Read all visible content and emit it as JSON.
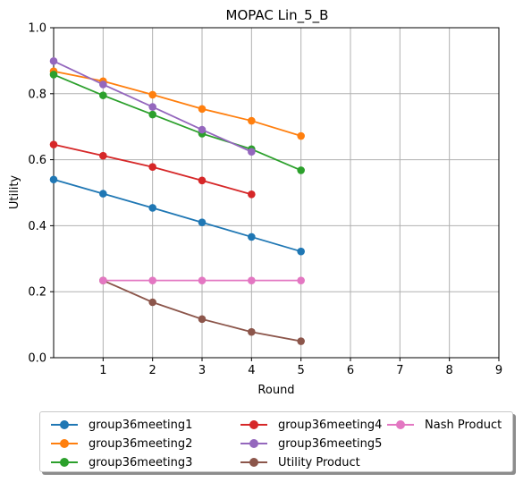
{
  "chart_data": {
    "type": "line",
    "title": "MOPAC Lin_5_B",
    "xlabel": "Round",
    "ylabel": "Utility",
    "xlim": [
      0,
      9
    ],
    "ylim": [
      0.0,
      1.0
    ],
    "xticks": [
      "1",
      "2",
      "3",
      "4",
      "5",
      "6",
      "7",
      "8",
      "9"
    ],
    "yticks": [
      "0.0",
      "0.2",
      "0.4",
      "0.6",
      "0.8",
      "1.0"
    ],
    "grid": true,
    "legend_position": "below",
    "series": [
      {
        "name": "group36meeting1",
        "color": "#1f77b4",
        "x": [
          0,
          1,
          2,
          3,
          4,
          5
        ],
        "y": [
          0.54,
          0.497,
          0.454,
          0.41,
          0.366,
          0.322
        ]
      },
      {
        "name": "group36meeting2",
        "color": "#ff7f0e",
        "x": [
          0,
          1,
          2,
          3,
          4,
          5
        ],
        "y": [
          0.868,
          0.838,
          0.797,
          0.754,
          0.718,
          0.672
        ]
      },
      {
        "name": "group36meeting3",
        "color": "#2ca02c",
        "x": [
          0,
          1,
          2,
          3,
          4,
          5
        ],
        "y": [
          0.858,
          0.795,
          0.737,
          0.679,
          0.632,
          0.568
        ]
      },
      {
        "name": "group36meeting4",
        "color": "#d62728",
        "x": [
          0,
          1,
          2,
          3,
          4
        ],
        "y": [
          0.646,
          0.612,
          0.578,
          0.537,
          0.495
        ]
      },
      {
        "name": "group36meeting5",
        "color": "#9467bd",
        "x": [
          0,
          1,
          2,
          3,
          4
        ],
        "y": [
          0.899,
          0.828,
          0.76,
          0.691,
          0.624
        ]
      },
      {
        "name": "Utility Product",
        "color": "#8c564b",
        "x": [
          1,
          2,
          3,
          4,
          5
        ],
        "y": [
          0.234,
          0.168,
          0.117,
          0.078,
          0.05
        ]
      },
      {
        "name": "Nash Product",
        "color": "#e377c2",
        "x": [
          1,
          2,
          3,
          4,
          5
        ],
        "y": [
          0.234,
          0.234,
          0.234,
          0.234,
          0.234
        ]
      }
    ]
  }
}
